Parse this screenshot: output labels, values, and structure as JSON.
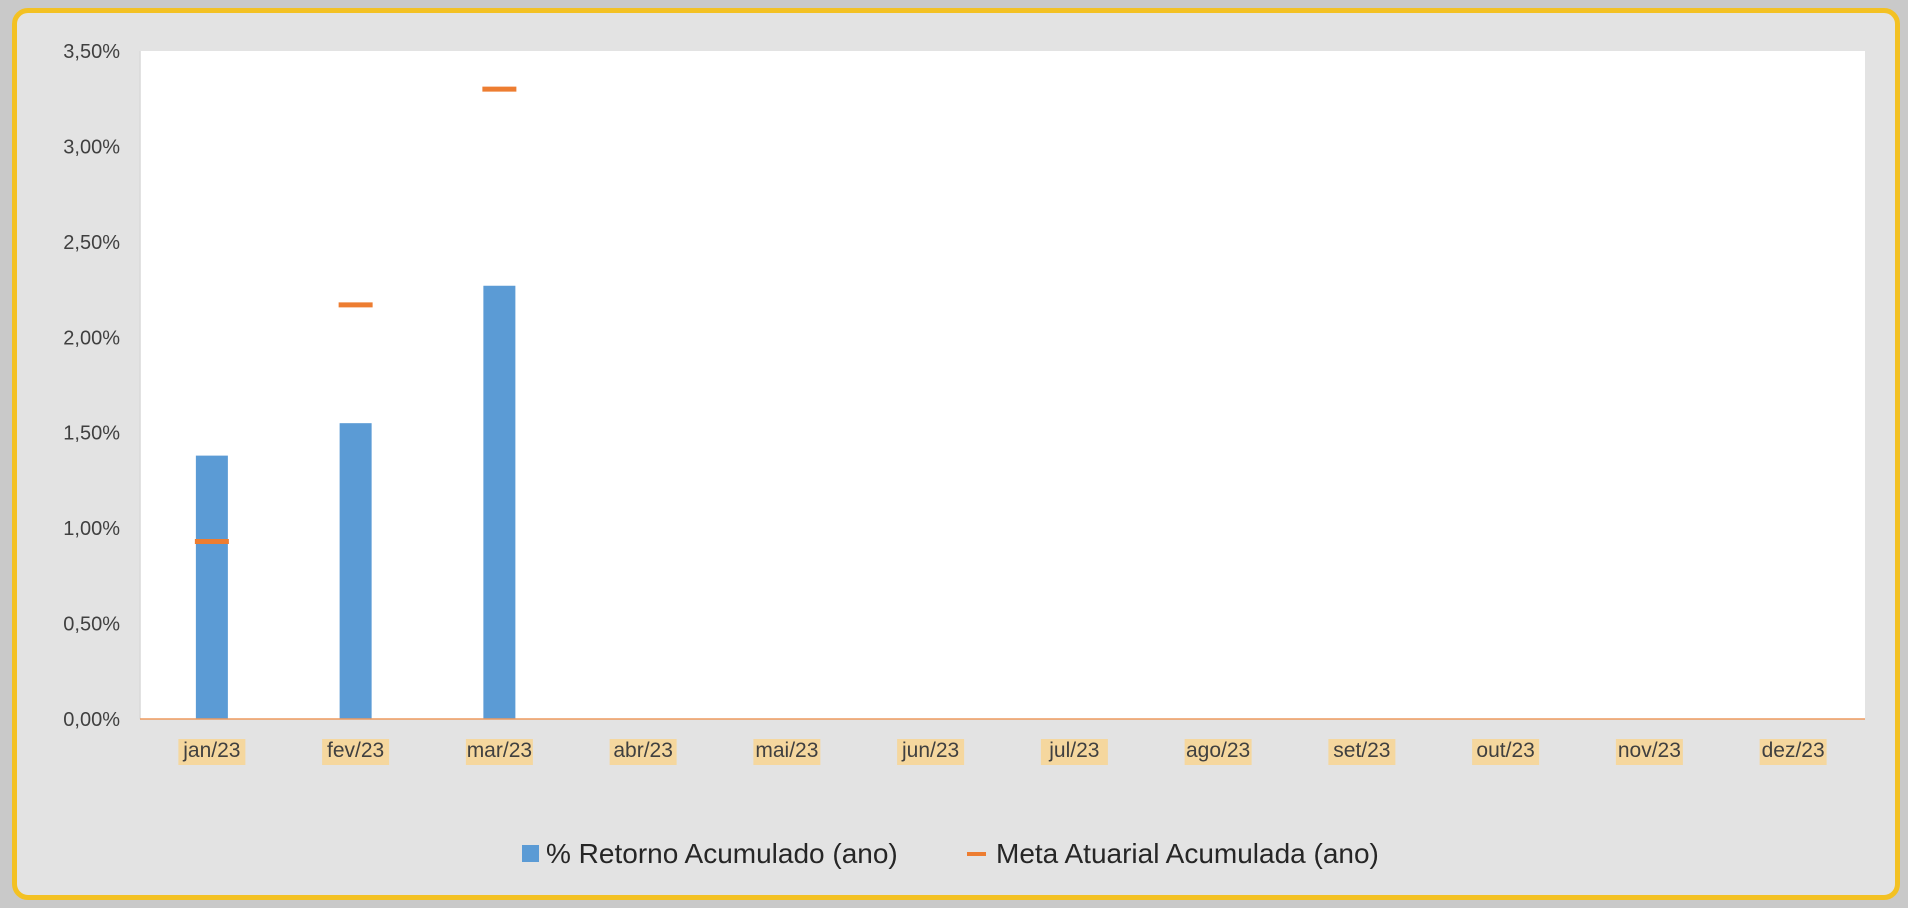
{
  "chart_data": {
    "type": "bar",
    "title": "",
    "xlabel": "",
    "ylabel": "",
    "categories": [
      "jan/23",
      "fev/23",
      "mar/23",
      "abr/23",
      "mai/23",
      "jun/23",
      "jul/23",
      "ago/23",
      "set/23",
      "out/23",
      "nov/23",
      "dez/23"
    ],
    "ylim": [
      0,
      3.5
    ],
    "yticks": [
      0,
      0.5,
      1.0,
      1.5,
      2.0,
      2.5,
      3.0,
      3.5
    ],
    "ytick_labels": [
      "0,00%",
      "0,50%",
      "1,00%",
      "1,50%",
      "2,00%",
      "2,50%",
      "3,00%",
      "3,50%"
    ],
    "grid": false,
    "legend_position": "bottom",
    "series": [
      {
        "name": "% Retorno Acumulado (ano)",
        "type": "bar",
        "color": "#5b9bd5",
        "values": [
          1.38,
          1.55,
          2.27,
          null,
          null,
          null,
          null,
          null,
          null,
          null,
          null,
          null
        ]
      },
      {
        "name": "Meta Atuarial Acumulada (ano)",
        "type": "marker",
        "color": "#ed7d31",
        "values": [
          0.93,
          2.17,
          3.3,
          null,
          null,
          null,
          null,
          null,
          null,
          null,
          null,
          null
        ]
      }
    ],
    "colors": {
      "frame_border": "#f3c123",
      "frame_background": "#e3e3e3",
      "plot_background": "#ffffff",
      "axis_line": "#ed7d31",
      "tick_label_highlight": "#f5d79e"
    }
  }
}
